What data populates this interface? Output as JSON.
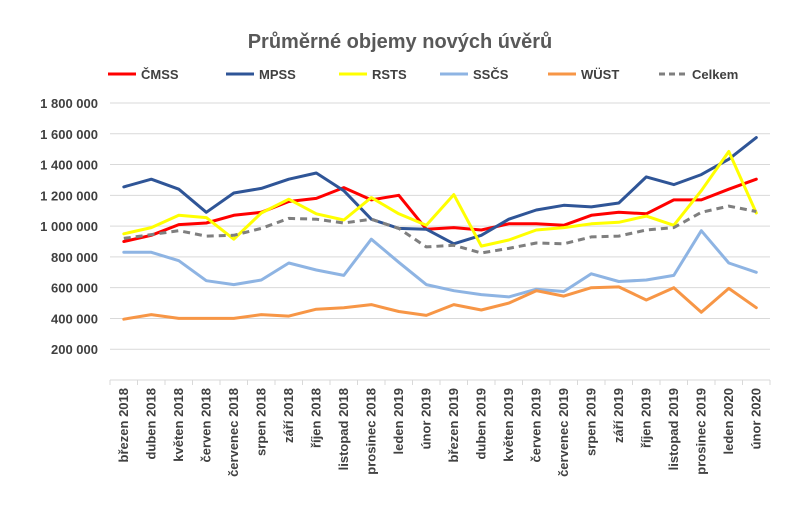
{
  "chart_data": {
    "type": "line",
    "title": "Průměrné objemy nových úvěrů",
    "xlabel": "",
    "ylabel": "",
    "ylim": [
      0,
      1800000
    ],
    "yticks": [
      0,
      200000,
      400000,
      600000,
      800000,
      1000000,
      1200000,
      1400000,
      1600000,
      1800000
    ],
    "ytick_labels": [
      "",
      "200 000",
      "400 000",
      "600 000",
      "800 000",
      "1 000 000",
      "1 200 000",
      "1 400 000",
      "1 600 000",
      "1 800 000"
    ],
    "grid": true,
    "legend_position": "top",
    "categories": [
      "březen 2018",
      "duben 2018",
      "květen 2018",
      "červen 2018",
      "červenec 2018",
      "srpen 2018",
      "září 2018",
      "říjen 2018",
      "listopad 2018",
      "prosinec 2018",
      "leden 2019",
      "únor 2019",
      "březen 2019",
      "duben 2019",
      "květen 2019",
      "červen 2019",
      "červenec 2019",
      "srpen 2019",
      "září 2019",
      "říjen 2019",
      "listopad 2019",
      "prosinec 2019",
      "leden 2020",
      "únor 2020"
    ],
    "series": [
      {
        "name": "ČMSS",
        "color": "#ff0000",
        "dash": "solid",
        "values": [
          900000,
          940000,
          1010000,
          1020000,
          1070000,
          1090000,
          1160000,
          1180000,
          1250000,
          1170000,
          1200000,
          980000,
          990000,
          975000,
          1015000,
          1015000,
          1005000,
          1070000,
          1090000,
          1080000,
          1170000,
          1170000,
          1240000,
          1305000
        ]
      },
      {
        "name": "MPSS",
        "color": "#2f5597",
        "dash": "solid",
        "values": [
          1255000,
          1305000,
          1240000,
          1090000,
          1215000,
          1245000,
          1305000,
          1345000,
          1230000,
          1045000,
          985000,
          980000,
          885000,
          940000,
          1045000,
          1105000,
          1135000,
          1125000,
          1150000,
          1320000,
          1270000,
          1335000,
          1435000,
          1575000
        ]
      },
      {
        "name": "RSTS",
        "color": "#ffff00",
        "dash": "solid",
        "values": [
          950000,
          990000,
          1070000,
          1055000,
          915000,
          1085000,
          1175000,
          1080000,
          1040000,
          1185000,
          1080000,
          1005000,
          1205000,
          870000,
          910000,
          975000,
          990000,
          1015000,
          1025000,
          1065000,
          1005000,
          1230000,
          1485000,
          1085000
        ]
      },
      {
        "name": "SSČS",
        "color": "#8eb4e3",
        "dash": "solid",
        "values": [
          830000,
          830000,
          775000,
          645000,
          620000,
          650000,
          760000,
          715000,
          680000,
          915000,
          765000,
          620000,
          580000,
          555000,
          540000,
          590000,
          575000,
          690000,
          640000,
          650000,
          680000,
          970000,
          760000,
          700000
        ]
      },
      {
        "name": "WÜST",
        "color": "#f79646",
        "dash": "solid",
        "values": [
          395000,
          425000,
          400000,
          400000,
          400000,
          425000,
          415000,
          460000,
          470000,
          490000,
          445000,
          420000,
          490000,
          455000,
          500000,
          580000,
          545000,
          600000,
          605000,
          520000,
          600000,
          440000,
          595000,
          470000
        ]
      },
      {
        "name": "Celkem",
        "color": "#7f7f7f",
        "dash": "dashed",
        "values": [
          920000,
          945000,
          970000,
          935000,
          940000,
          985000,
          1050000,
          1045000,
          1020000,
          1045000,
          985000,
          865000,
          875000,
          825000,
          855000,
          890000,
          885000,
          930000,
          935000,
          975000,
          990000,
          1090000,
          1130000,
          1095000
        ]
      }
    ]
  }
}
